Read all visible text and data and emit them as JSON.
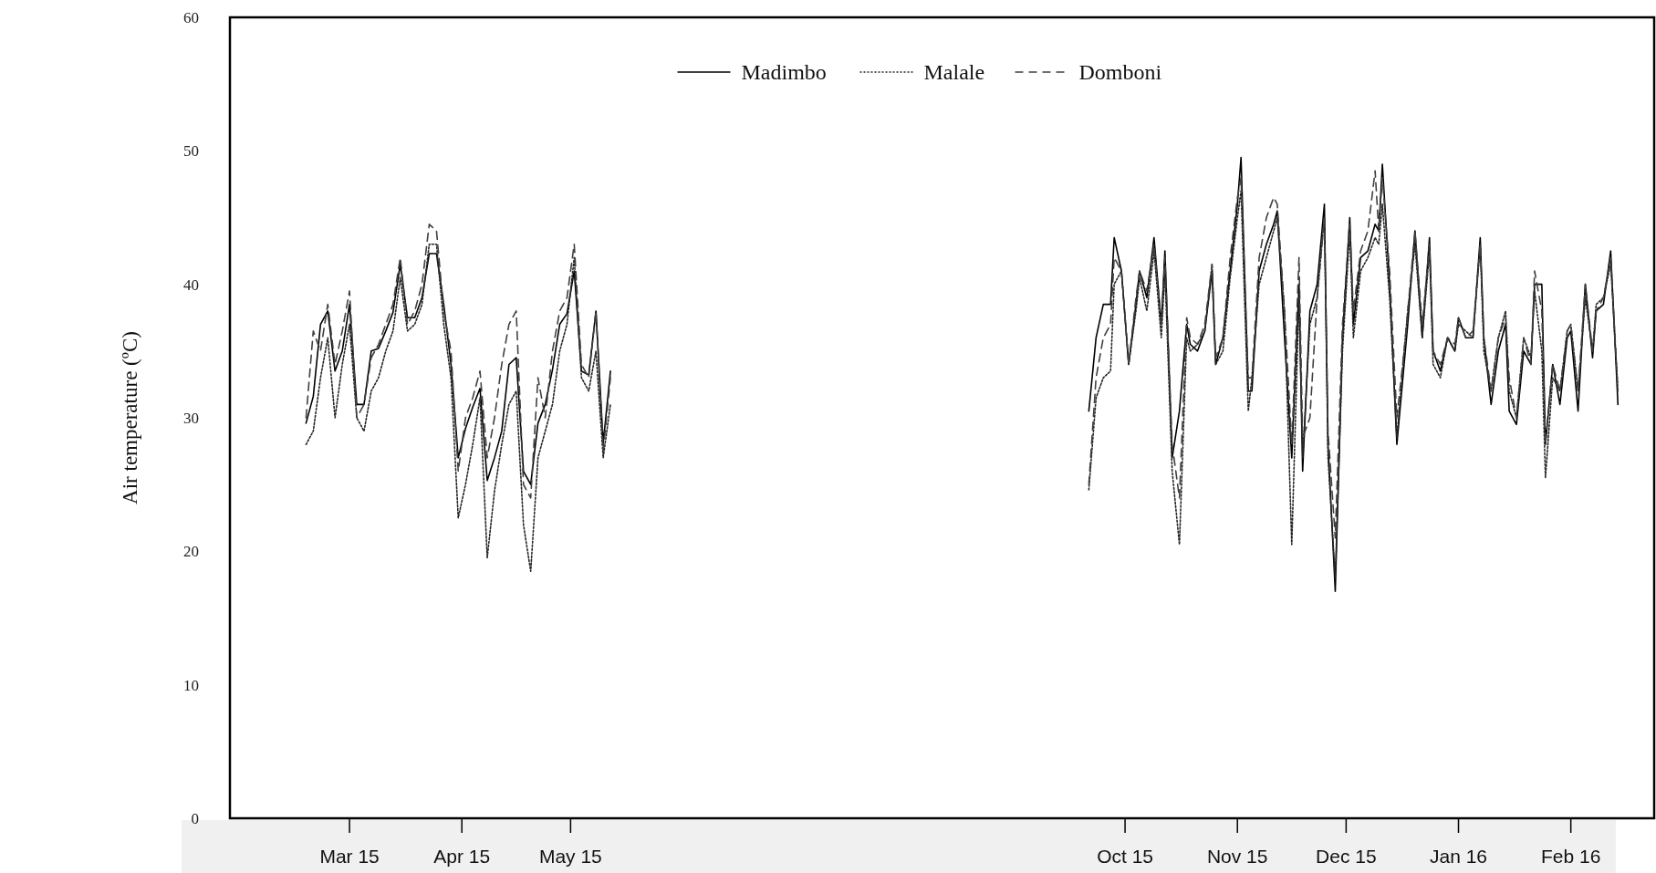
{
  "chart_data": {
    "type": "line",
    "ylabel": "Air temperature (ºC)",
    "x": [
      "2015-02-17",
      "2015-02-19",
      "2015-02-21",
      "2015-02-23",
      "2015-02-25",
      "2015-02-27",
      "2015-03-01",
      "2015-03-03",
      "2015-03-05",
      "2015-03-07",
      "2015-03-09",
      "2015-03-11",
      "2015-03-13",
      "2015-03-15",
      "2015-03-17",
      "2015-03-19",
      "2015-03-21",
      "2015-03-23",
      "2015-03-25",
      "2015-03-27",
      "2015-03-29",
      "2015-03-31",
      "2015-04-02",
      "2015-04-04",
      "2015-04-06",
      "2015-04-08",
      "2015-04-10",
      "2015-04-12",
      "2015-04-14",
      "2015-04-16",
      "2015-04-18",
      "2015-04-20",
      "2015-04-22",
      "2015-04-24",
      "2015-04-26",
      "2015-04-28",
      "2015-04-30",
      "2015-05-02",
      "2015-05-04",
      "2015-05-06",
      "2015-05-08",
      "2015-05-10",
      "2015-05-12",
      "2015-07-15",
      "2015-09-21",
      "2015-09-23",
      "2015-09-25",
      "2015-09-27",
      "2015-09-28",
      "2015-09-30",
      "2015-10-02",
      "2015-10-04",
      "2015-10-05",
      "2015-10-07",
      "2015-10-09",
      "2015-10-11",
      "2015-10-12",
      "2015-10-14",
      "2015-10-16",
      "2015-10-18",
      "2015-10-19",
      "2015-10-21",
      "2015-10-23",
      "2015-10-25",
      "2015-10-26",
      "2015-10-28",
      "2015-10-30",
      "2015-11-01",
      "2015-11-02",
      "2015-11-04",
      "2015-11-05",
      "2015-11-07",
      "2015-11-09",
      "2015-11-11",
      "2015-11-12",
      "2015-11-14",
      "2015-11-16",
      "2015-11-18",
      "2015-11-19",
      "2015-11-21",
      "2015-11-23",
      "2015-11-25",
      "2015-11-26",
      "2015-11-28",
      "2015-11-30",
      "2015-12-02",
      "2015-12-03",
      "2015-12-05",
      "2015-12-07",
      "2015-12-09",
      "2015-12-10",
      "2015-12-11",
      "2015-12-13",
      "2015-12-15",
      "2015-12-17",
      "2015-12-18",
      "2015-12-20",
      "2015-12-22",
      "2015-12-24",
      "2015-12-25",
      "2015-12-27",
      "2015-12-29",
      "2015-12-31",
      "2016-01-01",
      "2016-01-03",
      "2016-01-05",
      "2016-01-07",
      "2016-01-08",
      "2016-01-10",
      "2016-01-12",
      "2016-01-14",
      "2016-01-15",
      "2016-01-17",
      "2016-01-19",
      "2016-01-21",
      "2016-01-22",
      "2016-01-24",
      "2016-01-25",
      "2016-01-27",
      "2016-01-29",
      "2016-01-31",
      "2016-02-01",
      "2016-02-03",
      "2016-02-05",
      "2016-02-07",
      "2016-02-08",
      "2016-02-10",
      "2016-02-12",
      "2016-02-14"
    ],
    "series": [
      {
        "name": "Madimbo",
        "color": "#000000",
        "line_style": "solid",
        "values": [
          29.6,
          31.6,
          37,
          38,
          33.5,
          35,
          38.5,
          31,
          31,
          35,
          35.2,
          36.5,
          37.9,
          41.5,
          37.5,
          37.5,
          39,
          42.3,
          42.3,
          38.5,
          34,
          27,
          29.2,
          30.8,
          32.2,
          25.3,
          27,
          29,
          34,
          34.5,
          26,
          25,
          29.6,
          31,
          33.6,
          37,
          37.8,
          41,
          33.5,
          33.2,
          38,
          28.1,
          33.5,
          null,
          30.5,
          36,
          38.5,
          38.5,
          43.5,
          41,
          34,
          38.5,
          41,
          39,
          43.5,
          37,
          42.5,
          27,
          30.5,
          37,
          35.5,
          35,
          36.5,
          41,
          34,
          36,
          41,
          46,
          49.5,
          32,
          32,
          41,
          43,
          44.5,
          45.5,
          36,
          27,
          40,
          26,
          38,
          40,
          46,
          28,
          17,
          36,
          45,
          37,
          42,
          42.5,
          44.5,
          44,
          49,
          40,
          28,
          34,
          37,
          44,
          36,
          43.5,
          35,
          33.5,
          36,
          35,
          37.5,
          36,
          36,
          43.5,
          36,
          31,
          35,
          37,
          30.5,
          29.5,
          35,
          34,
          40,
          40,
          28,
          34,
          31,
          36,
          36.5,
          30.5,
          40,
          34.5,
          38,
          38.5,
          42.5,
          31
        ]
      },
      {
        "name": "Malale",
        "color": "#262626",
        "line_style": "dotted",
        "values": [
          28,
          29,
          33,
          36,
          30,
          34,
          37,
          30,
          29,
          32,
          33,
          35,
          36.5,
          40.5,
          36.5,
          37,
          38.5,
          43,
          43,
          37,
          33,
          22.5,
          25,
          28,
          31.5,
          19.5,
          24.5,
          28,
          31,
          32,
          22,
          18.5,
          27,
          29,
          31,
          35,
          37,
          42,
          33,
          32,
          35,
          27,
          31,
          null,
          24.6,
          31.5,
          33,
          33.5,
          40,
          41,
          34,
          38,
          40.5,
          38,
          42.5,
          36,
          41,
          26,
          20.5,
          36,
          35,
          35.5,
          36.5,
          41.5,
          34,
          35,
          40.5,
          45,
          47,
          30.5,
          33,
          40,
          42,
          44,
          45,
          38,
          20.5,
          39,
          27,
          37,
          39,
          45,
          27,
          18,
          35,
          44,
          36,
          41,
          42,
          43.5,
          43,
          46,
          39,
          28.5,
          35,
          38,
          43,
          36,
          42.5,
          34,
          33,
          36,
          35,
          37,
          36.5,
          36,
          43,
          35,
          32,
          36,
          38,
          32,
          30,
          36,
          34.5,
          39.5,
          35,
          25.5,
          33,
          32,
          36.5,
          37,
          32,
          39,
          35,
          38.5,
          39,
          41.5,
          32
        ]
      },
      {
        "name": "Domboni",
        "color": "#404040",
        "line_style": "dashed",
        "values": [
          30,
          36.5,
          35,
          38.5,
          34,
          36.5,
          39.5,
          30,
          31,
          34.5,
          35.5,
          37,
          38.5,
          42,
          37,
          38,
          40,
          44.5,
          44,
          38,
          35,
          26,
          30,
          31.5,
          33.5,
          27,
          30,
          34,
          37,
          38,
          25,
          24,
          33,
          30,
          35,
          38,
          39,
          43,
          34,
          33,
          38,
          27.5,
          33,
          null,
          25,
          33,
          36,
          37,
          42,
          41,
          34,
          39,
          41,
          39.5,
          43,
          37,
          42,
          28,
          24,
          37.5,
          36,
          35.5,
          37,
          41.5,
          34.5,
          36,
          42,
          46.5,
          48,
          33,
          33,
          42,
          45,
          46.5,
          46,
          38,
          28,
          42,
          28.5,
          30,
          39,
          45,
          29,
          21,
          37,
          44.5,
          38,
          42.5,
          44,
          48.5,
          44,
          48,
          41,
          30,
          35,
          38,
          44,
          37,
          43,
          35,
          34,
          36,
          35.5,
          37.5,
          36,
          36.5,
          43,
          36,
          32,
          36,
          37.5,
          33,
          30,
          36,
          34,
          41,
          38,
          28,
          34,
          32,
          36.5,
          37,
          32,
          40,
          35,
          38,
          39,
          42,
          32
        ]
      }
    ],
    "xlim": [
      "2015-01-27",
      "2016-02-24"
    ],
    "xticks": [
      {
        "value": "2015-03-01",
        "label": "Mar 15"
      },
      {
        "value": "2015-04-01",
        "label": "Apr 15"
      },
      {
        "value": "2015-05-01",
        "label": "May 15"
      },
      {
        "value": "2015-10-01",
        "label": "Oct 15"
      },
      {
        "value": "2015-11-01",
        "label": "Nov 15"
      },
      {
        "value": "2015-12-01",
        "label": "Dec 15"
      },
      {
        "value": "2016-01-01",
        "label": "Jan 16"
      },
      {
        "value": "2016-02-01",
        "label": "Feb 16"
      }
    ],
    "ylim": [
      0,
      60
    ],
    "yticks": [
      0,
      10,
      20,
      30,
      40,
      50,
      60
    ],
    "grid": false,
    "legend": "top"
  }
}
